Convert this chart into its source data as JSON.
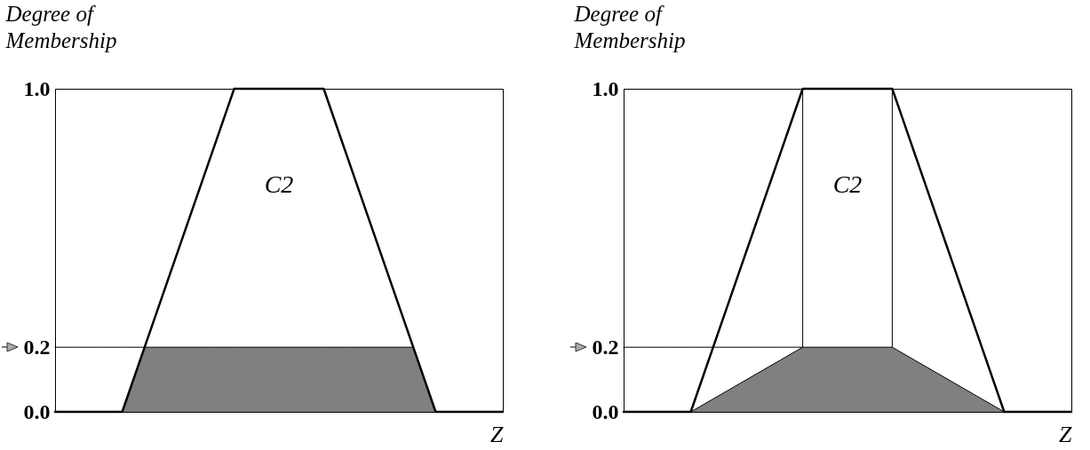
{
  "chart_data": [
    {
      "type": "line",
      "ylabel": "Degree of Membership",
      "xlabel": "Z",
      "categories": [
        null,
        null,
        null,
        null,
        null,
        null,
        null,
        null,
        null,
        null,
        null,
        null,
        null,
        null,
        null,
        null,
        null,
        null,
        null,
        null,
        null
      ],
      "ylim": [
        0,
        1
      ],
      "yticks": [
        {
          "value": 0,
          "label": "0.0"
        },
        {
          "value": 0.2,
          "label": "0.2"
        },
        {
          "value": 1,
          "label": "1.0"
        }
      ],
      "tick_labels": "y",
      "grid": false,
      "annotations": [
        "C2"
      ],
      "series": [
        {
          "type": "area",
          "color": "#808080",
          "values": [
            null,
            null,
            null,
            0,
            0.2,
            0.2,
            0.2,
            0.2,
            0.2,
            0.2,
            0.2,
            0.2,
            0.2,
            0.2,
            0.2,
            0.2,
            0.2,
            0,
            null,
            null,
            null
          ]
        },
        {
          "color": "#000000",
          "values": [
            0,
            0,
            0,
            0,
            0.2,
            0.4,
            0.6,
            0.8,
            1,
            1,
            1,
            1,
            1,
            0.8,
            0.6,
            0.4,
            0.2,
            0,
            0,
            0,
            0
          ]
        },
        {
          "color": "#000000",
          "values": [
            0.2,
            0.2,
            0.2,
            0.2,
            0.2,
            null,
            null,
            null,
            null,
            null,
            null,
            null,
            null,
            null,
            null,
            null,
            null,
            null,
            null,
            null,
            null
          ]
        }
      ]
    },
    {
      "type": "line",
      "ylabel": "Degree of Membership",
      "xlabel": "Z",
      "categories": [
        null,
        null,
        null,
        null,
        null,
        null,
        null,
        null,
        null,
        null,
        null,
        null,
        null,
        null,
        null,
        null,
        null,
        null,
        null,
        null,
        null
      ],
      "ylim": [
        0,
        1
      ],
      "yticks": [
        {
          "value": 0,
          "label": "0.0"
        },
        {
          "value": 0.2,
          "label": "0.2"
        },
        {
          "value": 1,
          "label": "1.0"
        }
      ],
      "tick_labels": "y",
      "grid": false,
      "annotations": [
        "C2"
      ],
      "series": [
        {
          "type": "area",
          "color": "#808080",
          "values": [
            null,
            null,
            null,
            0,
            0.04,
            0.08,
            0.12,
            0.16,
            0.2,
            0.2,
            0.2,
            0.2,
            0.2,
            0.16,
            0.12,
            0.08,
            0.04,
            0,
            null,
            null,
            null
          ]
        },
        {
          "color": "#000000",
          "values": [
            0,
            0,
            0,
            0,
            0.2,
            0.4,
            0.6,
            0.8,
            1,
            1,
            1,
            1,
            1,
            0.8,
            0.6,
            0.4,
            0.2,
            0,
            0,
            0,
            0
          ]
        },
        {
          "color": "#000000",
          "values": [
            0.2,
            0.2,
            0.2,
            0.2,
            0.2,
            0.2,
            0.2,
            0.2,
            0.2,
            null,
            null,
            null,
            null,
            null,
            null,
            null,
            null,
            null,
            null,
            null,
            null
          ]
        }
      ]
    }
  ]
}
